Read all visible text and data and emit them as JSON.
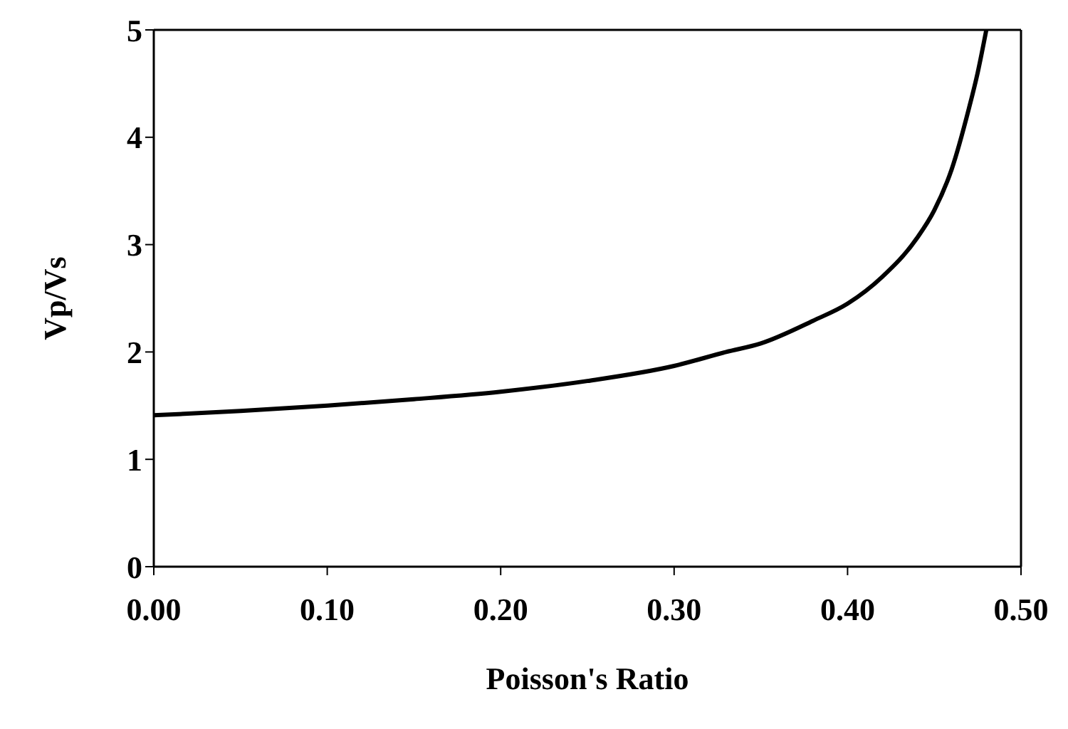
{
  "chart_data": {
    "type": "line",
    "xlabel": "Poisson's Ratio",
    "ylabel": "Vp/Vs",
    "x": [
      0,
      0.05,
      0.1,
      0.15,
      0.2,
      0.25,
      0.3,
      0.33,
      0.35,
      0.38,
      0.4,
      0.42,
      0.44,
      0.45,
      0.46,
      0.47,
      0.475,
      0.48
    ],
    "series": [
      {
        "color": "#000000",
        "values": [
          1.41,
          1.45,
          1.5,
          1.56,
          1.63,
          1.73,
          1.87,
          2.0,
          2.08,
          2.29,
          2.45,
          2.7,
          3.06,
          3.32,
          3.7,
          4.27,
          4.6,
          5.0
        ]
      }
    ],
    "xlim": [
      0,
      0.5
    ],
    "ylim": [
      0,
      5
    ],
    "xticks": [
      {
        "value": 0,
        "label": "0.00"
      },
      {
        "value": 0.1,
        "label": "0.10"
      },
      {
        "value": 0.2,
        "label": "0.20"
      },
      {
        "value": 0.3,
        "label": "0.30"
      },
      {
        "value": 0.4,
        "label": "0.40"
      },
      {
        "value": 0.5,
        "label": "0.50"
      }
    ],
    "yticks": [
      0,
      1,
      2,
      3,
      4,
      5
    ],
    "grid": false,
    "marker": "none",
    "line_style": "solid"
  }
}
